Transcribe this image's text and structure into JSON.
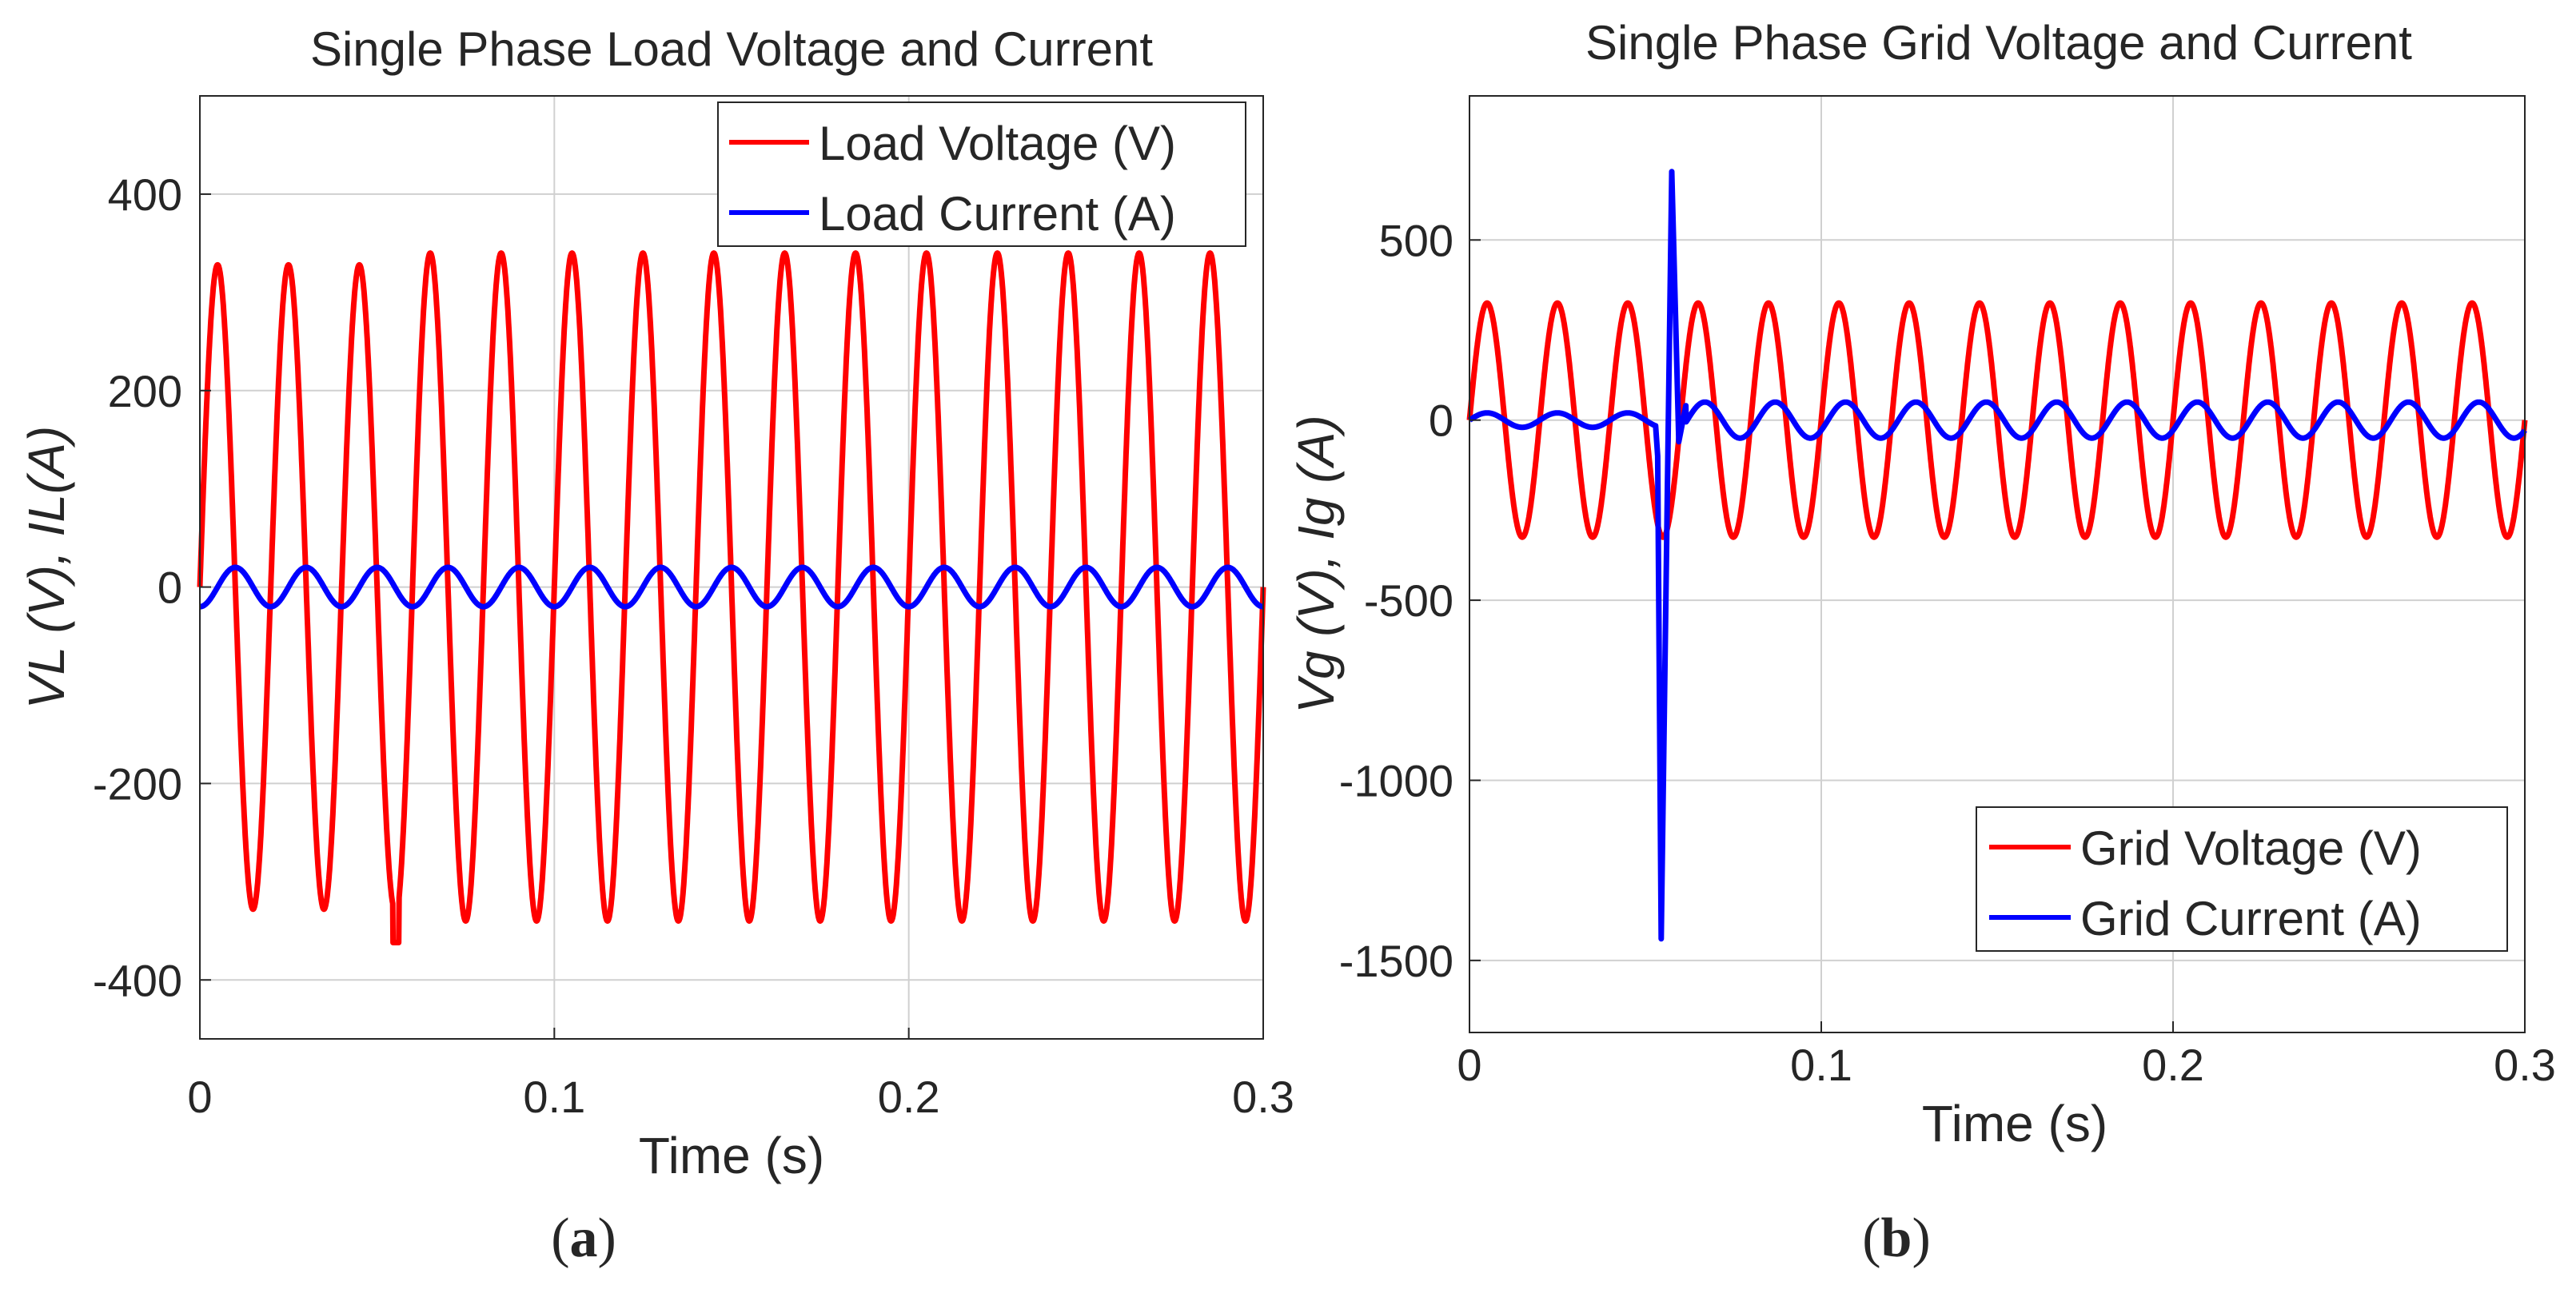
{
  "chart_data": [
    {
      "type": "line",
      "panel_label": "(a)",
      "panel_letter": "a",
      "title": "Single Phase Load Voltage and Current",
      "xlabel": "Time (s)",
      "ylabel": "VL (V), IL(A)",
      "xlim": [
        0,
        0.3
      ],
      "ylim": [
        -460,
        500
      ],
      "xticks": [
        0,
        0.1,
        0.2,
        0.3
      ],
      "xtick_labels": [
        "0",
        "0.1",
        "0.2",
        "0.3"
      ],
      "yticks": [
        -400,
        -200,
        0,
        200,
        400
      ],
      "ytick_labels": [
        "-400",
        "-200",
        "0",
        "200",
        "400"
      ],
      "grid": true,
      "legend_position": "top-right",
      "series": [
        {
          "name": "Load Voltage (V)",
          "color": "#ff0000",
          "waveform": "sine",
          "frequency_hz": 50,
          "amplitude_before_event": 328,
          "amplitude_after_event": 340,
          "event_time_s": 0.055,
          "event_dip": -362
        },
        {
          "name": "Load Current (A)",
          "color": "#0000ff",
          "waveform": "sine",
          "frequency_hz": 50,
          "amplitude": 20,
          "phase_shift_deg": -90
        }
      ]
    },
    {
      "type": "line",
      "panel_label": "(b)",
      "panel_letter": "b",
      "title": "Single Phase Grid Voltage and Current",
      "xlabel": "Time (s)",
      "ylabel": "Vg (V), Ig (A)",
      "xlim": [
        0,
        0.3
      ],
      "ylim": [
        -1700,
        900
      ],
      "xticks": [
        0,
        0.1,
        0.2,
        0.3
      ],
      "xtick_labels": [
        "0",
        "0.1",
        "0.2",
        "0.3"
      ],
      "yticks": [
        -1500,
        -1000,
        -500,
        0,
        500
      ],
      "ytick_labels": [
        "-1500",
        "-1000",
        "-500",
        "0",
        "500"
      ],
      "grid": true,
      "legend_position": "bottom-right",
      "series": [
        {
          "name": "Grid Voltage (V)",
          "color": "#ff0000",
          "waveform": "sine",
          "frequency_hz": 50,
          "amplitude": 325
        },
        {
          "name": "Grid Current (A)",
          "color": "#0000ff",
          "waveform": "sine",
          "frequency_hz": 50,
          "amplitude_before_event": 20,
          "amplitude_after_event": 50,
          "transient_points": [
            [
              0.0535,
              -100
            ],
            [
              0.0545,
              -1440
            ],
            [
              0.0575,
              690
            ],
            [
              0.0595,
              -60
            ],
            [
              0.0615,
              40
            ]
          ],
          "event_time_s": 0.053
        }
      ]
    }
  ]
}
